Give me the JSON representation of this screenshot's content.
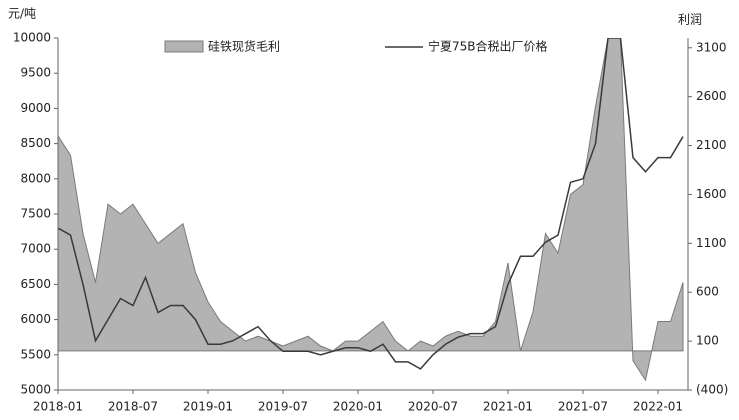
{
  "chart_data": {
    "type": "area-line",
    "left_axis_label": "元/吨",
    "right_axis_label": "利润",
    "x": [
      "2018-01",
      "2018-02",
      "2018-03",
      "2018-04",
      "2018-05",
      "2018-06",
      "2018-07",
      "2018-08",
      "2018-09",
      "2018-10",
      "2018-11",
      "2018-12",
      "2019-01",
      "2019-02",
      "2019-03",
      "2019-04",
      "2019-05",
      "2019-06",
      "2019-07",
      "2019-08",
      "2019-09",
      "2019-10",
      "2019-11",
      "2019-12",
      "2020-01",
      "2020-02",
      "2020-03",
      "2020-04",
      "2020-05",
      "2020-06",
      "2020-07",
      "2020-08",
      "2020-09",
      "2020-10",
      "2020-11",
      "2020-12",
      "2021-01",
      "2021-02",
      "2021-03",
      "2021-04",
      "2021-05",
      "2021-06",
      "2021-07",
      "2021-08",
      "2021-09",
      "2021-10",
      "2021-11",
      "2021-12",
      "2022-01",
      "2022-02",
      "2022-03"
    ],
    "xticks": [
      "2018-01",
      "2018-07",
      "2019-01",
      "2019-07",
      "2020-01",
      "2020-07",
      "2021-01",
      "2021-07",
      "2022-01"
    ],
    "series": [
      {
        "name": "硅铁现货毛利",
        "kind": "area",
        "axis": "y2",
        "color": "#b3b3b3",
        "edge": "#7a7a7a",
        "values": [
          2200,
          2000,
          1200,
          700,
          1500,
          1400,
          1500,
          1300,
          1100,
          1200,
          1300,
          800,
          500,
          300,
          200,
          100,
          150,
          100,
          50,
          100,
          150,
          50,
          0,
          100,
          100,
          200,
          300,
          100,
          0,
          100,
          50,
          150,
          200,
          150,
          150,
          300,
          900,
          0,
          400,
          1200,
          1000,
          1600,
          1700,
          2500,
          3200,
          3200,
          -100,
          -300,
          300,
          300,
          700
        ]
      },
      {
        "name": "宁夏75B合税出厂价格",
        "kind": "line",
        "axis": "y",
        "color": "#3a3a3a",
        "values": [
          7300,
          7200,
          6500,
          5700,
          6000,
          6300,
          6200,
          6600,
          6100,
          6200,
          6200,
          6000,
          5650,
          5650,
          5700,
          5800,
          5900,
          5700,
          5550,
          5550,
          5550,
          5500,
          5550,
          5600,
          5600,
          5550,
          5650,
          5400,
          5400,
          5300,
          5500,
          5650,
          5750,
          5800,
          5800,
          5900,
          6500,
          6900,
          6900,
          7100,
          7200,
          7950,
          8000,
          8500,
          10000,
          10000,
          8300,
          8100,
          8300,
          8300,
          8600
        ]
      }
    ],
    "ylim": [
      5000,
      10000
    ],
    "yticks": [
      5000,
      5500,
      6000,
      6500,
      7000,
      7500,
      8000,
      8500,
      9000,
      9500,
      10000
    ],
    "y2lim": [
      -400,
      3200
    ],
    "y2ticks": [
      {
        "value": -400,
        "label": "(400)"
      },
      100,
      600,
      1100,
      1600,
      2100,
      2600,
      3100
    ]
  }
}
